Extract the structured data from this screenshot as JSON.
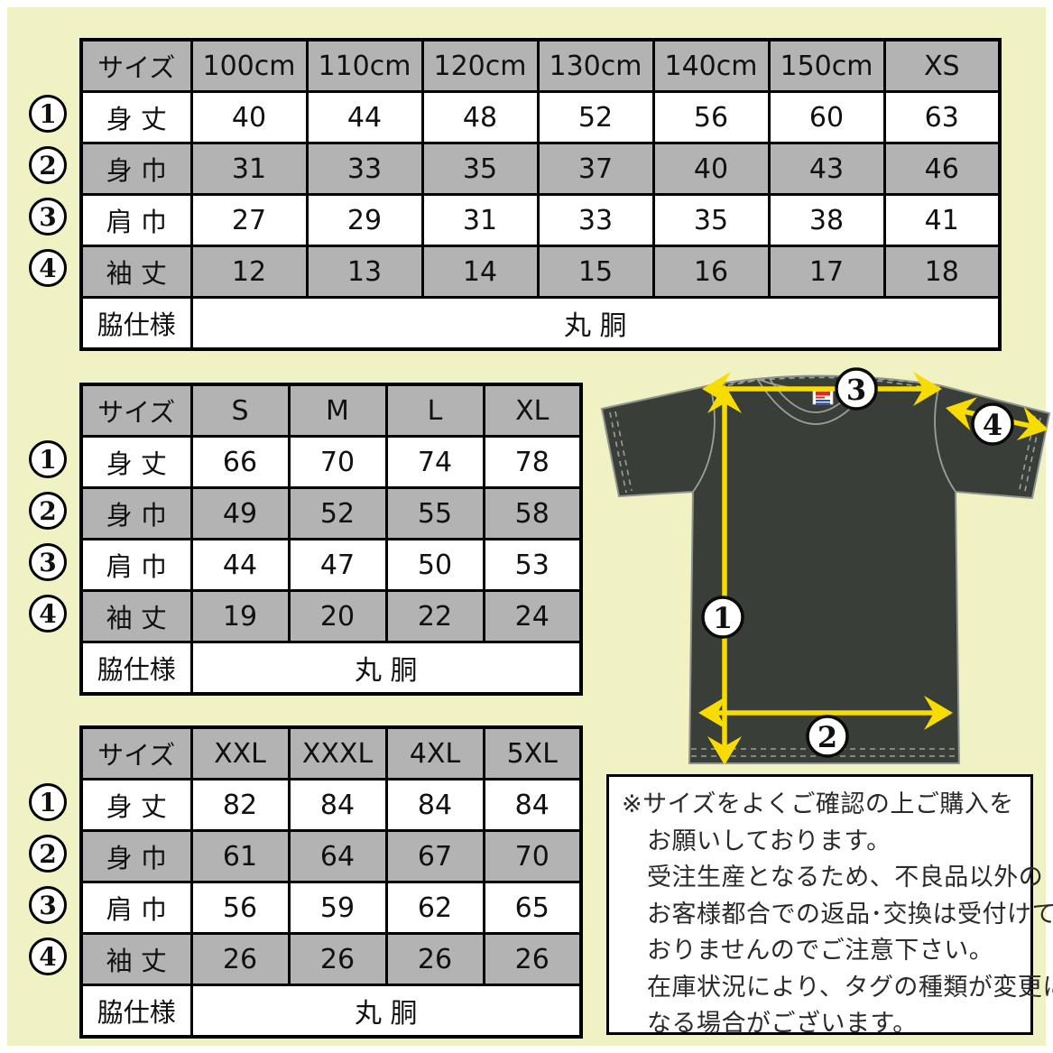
{
  "colors": {
    "background_yellow": "#f0f2c4",
    "table_gray": "#b3b3b3",
    "arrow_yellow": "#f8dc00",
    "shirt_charcoal": "#3a3e39"
  },
  "size_label": "サイズ",
  "measure_numbers": [
    "1",
    "2",
    "3",
    "4"
  ],
  "tables": [
    {
      "columns": [
        "100cm",
        "110cm",
        "120cm",
        "130cm",
        "140cm",
        "150cm",
        "XS"
      ],
      "rows": [
        {
          "label": "身 丈",
          "values": [
            "40",
            "44",
            "48",
            "52",
            "56",
            "60",
            "63"
          ]
        },
        {
          "label": "身 巾",
          "values": [
            "31",
            "33",
            "35",
            "37",
            "40",
            "43",
            "46"
          ]
        },
        {
          "label": "肩 巾",
          "values": [
            "27",
            "29",
            "31",
            "33",
            "35",
            "38",
            "41"
          ]
        },
        {
          "label": "袖 丈",
          "values": [
            "12",
            "13",
            "14",
            "15",
            "16",
            "17",
            "18"
          ]
        }
      ],
      "side_row": {
        "label": "脇仕様",
        "value": "丸 胴"
      }
    },
    {
      "columns": [
        "S",
        "M",
        "L",
        "XL"
      ],
      "rows": [
        {
          "label": "身 丈",
          "values": [
            "66",
            "70",
            "74",
            "78"
          ]
        },
        {
          "label": "身 巾",
          "values": [
            "49",
            "52",
            "55",
            "58"
          ]
        },
        {
          "label": "肩 巾",
          "values": [
            "44",
            "47",
            "50",
            "53"
          ]
        },
        {
          "label": "袖 丈",
          "values": [
            "19",
            "20",
            "22",
            "24"
          ]
        }
      ],
      "side_row": {
        "label": "脇仕様",
        "value": "丸 胴"
      }
    },
    {
      "columns": [
        "XXL",
        "XXXL",
        "4XL",
        "5XL"
      ],
      "rows": [
        {
          "label": "身 丈",
          "values": [
            "82",
            "84",
            "84",
            "84"
          ]
        },
        {
          "label": "身 巾",
          "values": [
            "61",
            "64",
            "67",
            "70"
          ]
        },
        {
          "label": "肩 巾",
          "values": [
            "56",
            "59",
            "62",
            "65"
          ]
        },
        {
          "label": "袖 丈",
          "values": [
            "26",
            "26",
            "26",
            "26"
          ]
        }
      ],
      "side_row": {
        "label": "脇仕様",
        "value": "丸 胴"
      }
    }
  ],
  "notice_lines": [
    "※サイズをよくご確認の上ご購入を",
    "お願いしております。",
    "受注生産となるため、不良品以外の",
    "お客様都合での返品･交換は受付けて",
    "おりませんのでご注意下さい。",
    "在庫状況により、タグの種類が変更に",
    "なる場合がございます。"
  ]
}
